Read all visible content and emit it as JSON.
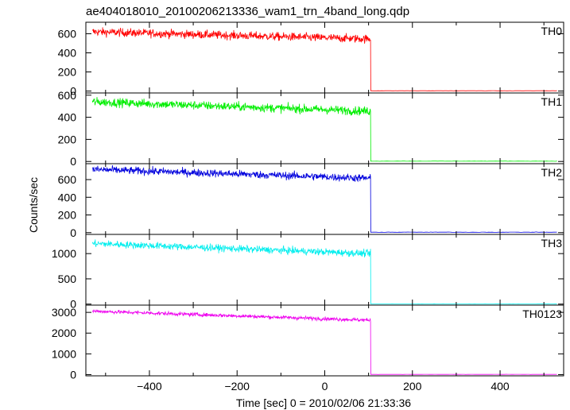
{
  "chart_data": {
    "type": "line",
    "title": "ae404018010_20100206213336_wam1_trn_4band_long.qdp",
    "xlabel": "Time [sec] 0 = 2010/02/06 21:33:36",
    "ylabel": "Counts/sec",
    "xlim": [
      -545,
      545
    ],
    "x_ticks": [
      -400,
      -200,
      0,
      200,
      400
    ],
    "x_tick_labels": [
      "−400",
      "−200",
      "0",
      "200",
      "400"
    ],
    "burst_start": -530,
    "cutoff_x": 105,
    "end_x": 530,
    "grid": false,
    "legend": "none",
    "panels": [
      {
        "name": "TH0",
        "color": "#ff0000",
        "ylim": [
          -20,
          720
        ],
        "y_ticks": [
          0,
          200,
          400,
          600
        ],
        "y_tick_labels": [
          "0",
          "200",
          "400",
          "600"
        ],
        "level_start": 620,
        "level_end": 545,
        "noise": 22,
        "post_level": 3
      },
      {
        "name": "TH1",
        "color": "#00ee00",
        "ylim": [
          -20,
          620
        ],
        "y_ticks": [
          0,
          200,
          400,
          600
        ],
        "y_tick_labels": [
          "0",
          "200",
          "400",
          "600"
        ],
        "level_start": 540,
        "level_end": 455,
        "noise": 20,
        "post_level": 3
      },
      {
        "name": "TH2",
        "color": "#0000dd",
        "ylim": [
          -20,
          780
        ],
        "y_ticks": [
          0,
          200,
          400,
          600
        ],
        "y_tick_labels": [
          "0",
          "200",
          "400",
          "600"
        ],
        "level_start": 715,
        "level_end": 615,
        "noise": 22,
        "post_level": 5
      },
      {
        "name": "TH3",
        "color": "#00eeee",
        "ylim": [
          -20,
          1380
        ],
        "y_ticks": [
          0,
          500,
          1000
        ],
        "y_tick_labels": [
          "0",
          "500",
          "1000"
        ],
        "level_start": 1200,
        "level_end": 1000,
        "noise": 35,
        "post_level": 5
      },
      {
        "name": "TH0123",
        "color": "#ee00ee",
        "ylim": [
          -60,
          3350
        ],
        "y_ticks": [
          0,
          1000,
          2000,
          3000
        ],
        "y_tick_labels": [
          "0",
          "1000",
          "2000",
          "3000"
        ],
        "level_start": 3060,
        "level_end": 2620,
        "noise": 45,
        "post_level": 10
      }
    ]
  }
}
